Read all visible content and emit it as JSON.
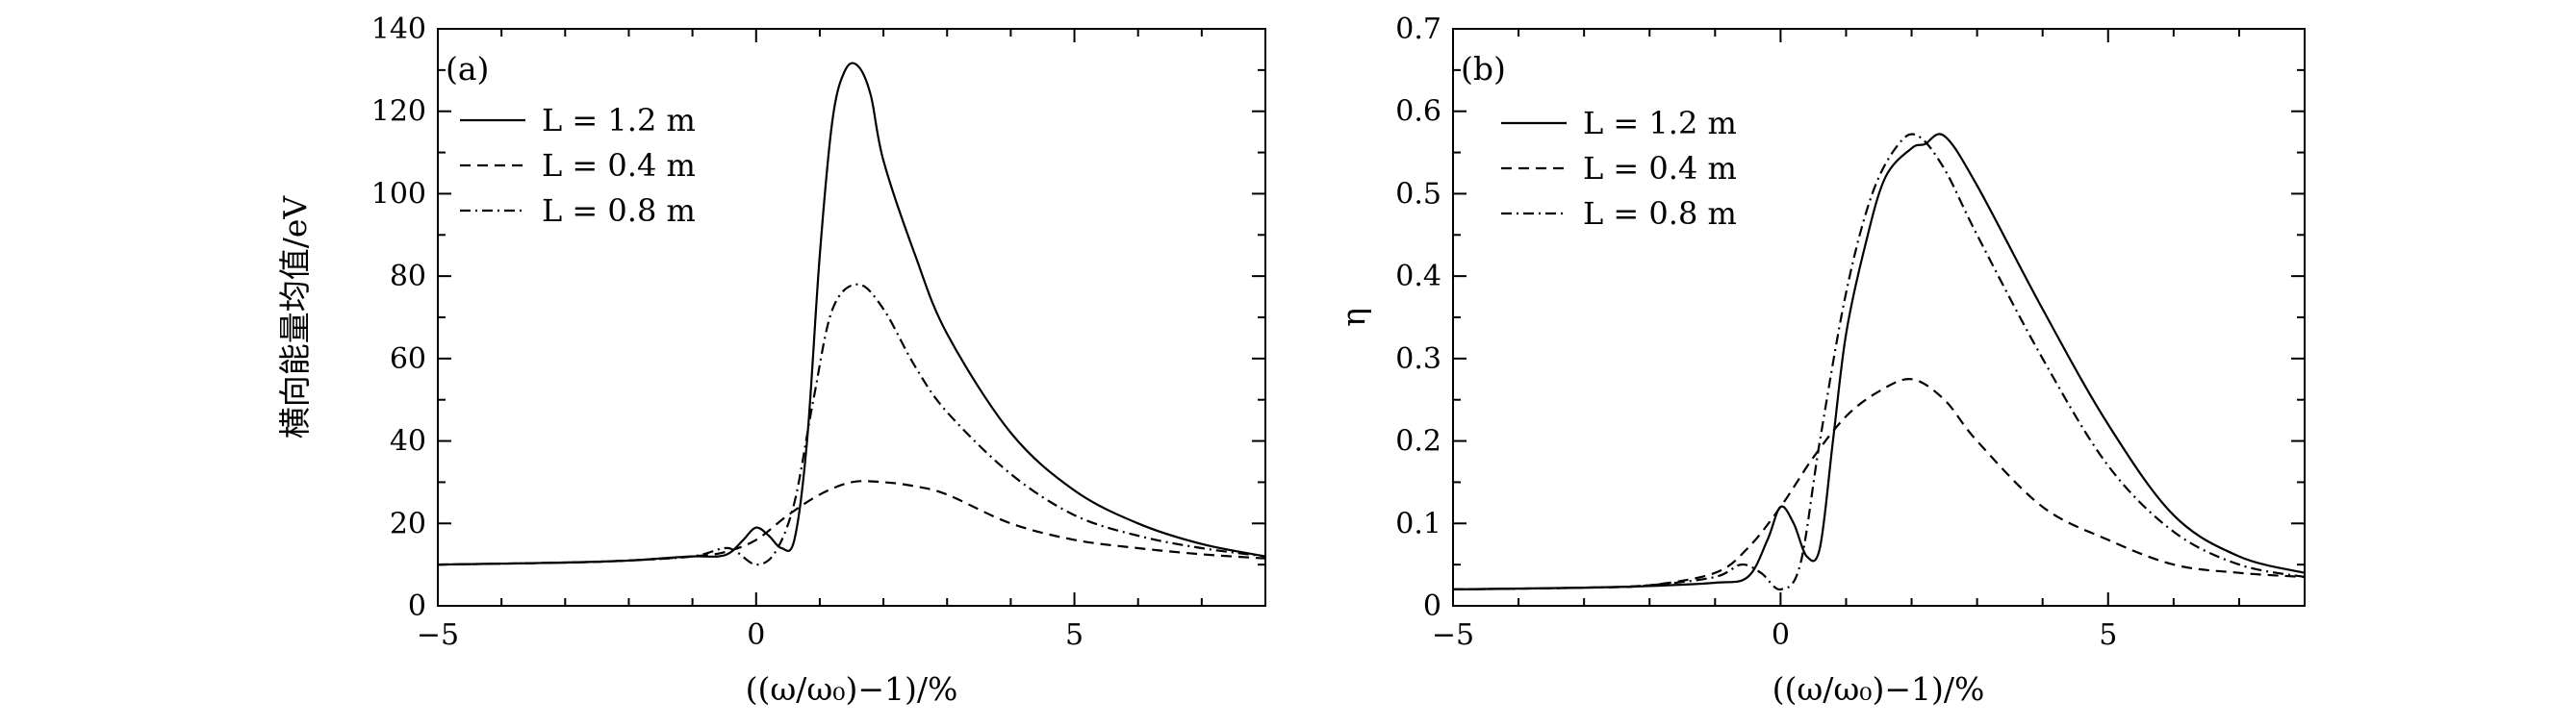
{
  "chart_data": [
    {
      "type": "line",
      "panel_label": "(a)",
      "xlabel": "((ω/ω₀)−1)/%",
      "ylabel": "横向能量均值/eV",
      "xlim": [
        -5,
        8
      ],
      "ylim": [
        0,
        140
      ],
      "xticks": [
        -5,
        0,
        5
      ],
      "yticks": [
        0,
        20,
        40,
        60,
        80,
        100,
        120,
        140
      ],
      "xtick_labels": [
        "−5",
        "0",
        "5"
      ],
      "ytick_labels": [
        "0",
        "20",
        "40",
        "60",
        "80",
        "100",
        "120",
        "140"
      ],
      "legend_position": "upper-left",
      "series": [
        {
          "name": "L = 1.2 m",
          "style": "solid",
          "x": [
            -5,
            -3,
            -2,
            -1.5,
            -1,
            -0.6,
            -0.4,
            -0.2,
            0,
            0.2,
            0.4,
            0.6,
            0.8,
            1.0,
            1.2,
            1.4,
            1.6,
            1.8,
            2.0,
            2.5,
            3,
            4,
            5,
            6,
            7,
            8
          ],
          "y": [
            10,
            10.5,
            11,
            11.5,
            12,
            12,
            13,
            16,
            19,
            17,
            14,
            16,
            40,
            85,
            118,
            130,
            131,
            124,
            108,
            85,
            66,
            42,
            28,
            20,
            15,
            12
          ]
        },
        {
          "name": "L = 0.4 m",
          "style": "dashed",
          "x": [
            -5,
            -3,
            -2,
            -1,
            -0.5,
            0,
            0.5,
            1,
            1.5,
            2,
            2.5,
            3,
            4,
            5,
            6,
            7,
            8
          ],
          "y": [
            10,
            10.5,
            11,
            12,
            13,
            16,
            22,
            27,
            30,
            30,
            29,
            27,
            20,
            16,
            14,
            12.5,
            11.5
          ]
        },
        {
          "name": "L = 0.8 m",
          "style": "dashdot",
          "x": [
            -5,
            -3,
            -2,
            -1,
            -0.5,
            -0.3,
            0,
            0.3,
            0.6,
            0.9,
            1.2,
            1.6,
            2.0,
            2.5,
            3,
            4,
            5,
            6,
            7,
            8
          ],
          "y": [
            10,
            10.5,
            11,
            12,
            14,
            13,
            10,
            13,
            25,
            50,
            72,
            78,
            72,
            58,
            47,
            32,
            22,
            17,
            14,
            12
          ]
        }
      ]
    },
    {
      "type": "line",
      "panel_label": "(b)",
      "xlabel": "((ω/ω₀)−1)/%",
      "ylabel": "η",
      "xlim": [
        -5,
        8
      ],
      "ylim": [
        0,
        0.7
      ],
      "xticks": [
        -5,
        0,
        5
      ],
      "yticks": [
        0,
        0.1,
        0.2,
        0.3,
        0.4,
        0.5,
        0.6,
        0.7
      ],
      "xtick_labels": [
        "−5",
        "0",
        "5"
      ],
      "ytick_labels": [
        "0",
        "0.1",
        "0.2",
        "0.3",
        "0.4",
        "0.5",
        "0.6",
        "0.7"
      ],
      "legend_position": "upper-left",
      "series": [
        {
          "name": "L = 1.2 m",
          "style": "solid",
          "x": [
            -5,
            -3,
            -2,
            -1,
            -0.5,
            -0.2,
            0,
            0.2,
            0.4,
            0.6,
            0.8,
            1.0,
            1.3,
            1.6,
            2.0,
            2.2,
            2.5,
            3,
            4,
            5,
            6,
            7,
            8
          ],
          "y": [
            0.02,
            0.022,
            0.024,
            0.028,
            0.035,
            0.08,
            0.12,
            0.1,
            0.06,
            0.07,
            0.2,
            0.33,
            0.44,
            0.52,
            0.555,
            0.56,
            0.57,
            0.51,
            0.36,
            0.22,
            0.11,
            0.06,
            0.04
          ]
        },
        {
          "name": "L = 0.4 m",
          "style": "dashed",
          "x": [
            -5,
            -3,
            -2,
            -1,
            -0.5,
            0,
            0.5,
            1,
            1.5,
            2,
            2.5,
            3,
            4,
            5,
            6,
            7,
            8
          ],
          "y": [
            0.02,
            0.022,
            0.025,
            0.04,
            0.07,
            0.12,
            0.18,
            0.23,
            0.26,
            0.275,
            0.25,
            0.2,
            0.12,
            0.08,
            0.05,
            0.04,
            0.035
          ]
        },
        {
          "name": "L = 0.8 m",
          "style": "dashdot",
          "x": [
            -5,
            -3,
            -2,
            -1,
            -0.6,
            -0.3,
            0,
            0.3,
            0.6,
            1.0,
            1.4,
            1.8,
            2.1,
            2.5,
            3,
            4,
            5,
            6,
            7,
            8
          ],
          "y": [
            0.02,
            0.022,
            0.025,
            0.035,
            0.05,
            0.04,
            0.02,
            0.05,
            0.2,
            0.38,
            0.5,
            0.56,
            0.57,
            0.53,
            0.45,
            0.3,
            0.17,
            0.09,
            0.05,
            0.035
          ]
        }
      ]
    }
  ]
}
